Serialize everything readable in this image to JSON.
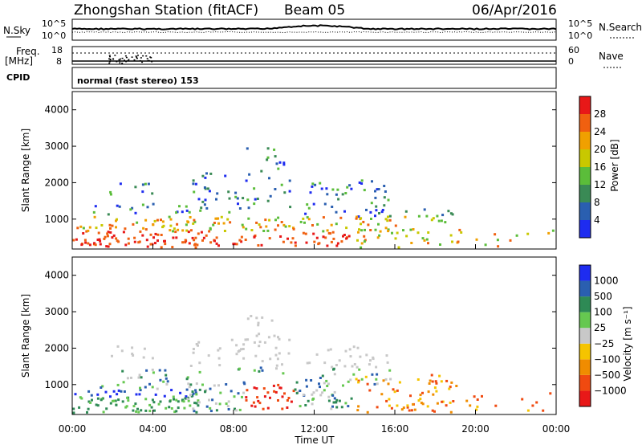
{
  "header": {
    "station_title": "Zhongshan Station (fitACF)",
    "beam": "Beam 05",
    "date": "06/Apr/2016"
  },
  "sky_panel": {
    "left_label": "N.Sky",
    "right_label": "N.Search",
    "left_top_tick": "10^5",
    "left_bottom_tick": "10^0",
    "right_top_tick": "10^5",
    "right_bottom_tick": "10^0"
  },
  "freq_panel": {
    "label_line1": "Freq.",
    "label_line2": "[MHz]",
    "left_top_tick": "18",
    "left_bottom_tick": "8",
    "right_top_tick": "60",
    "right_bottom_tick": "0",
    "right_label": "Nave"
  },
  "cpid": {
    "label": "CPID",
    "text": "normal (fast stereo) 153"
  },
  "colors": {
    "power_scale": [
      "#1e2cf0",
      "#2a5fb0",
      "#3a8a55",
      "#5bbd3a",
      "#c8c800",
      "#f0a000",
      "#f06010",
      "#e81818"
    ],
    "velocity_scale": [
      "#e81818",
      "#f04a10",
      "#f08c00",
      "#f5c400",
      "#c8c8c8",
      "#66c850",
      "#2e8a55",
      "#2a5fb0",
      "#1e2cf0"
    ]
  },
  "chart_data": [
    {
      "type": "heatmap",
      "name": "power",
      "xlabel": "",
      "ylabel": "Slant Range [km]",
      "ylim": [
        180,
        4500
      ],
      "xlim_hours": [
        0,
        24
      ],
      "y_ticks": [
        "1000",
        "2000",
        "3000",
        "4000"
      ],
      "x_ticks": [],
      "colorbar_label": "Power [dB]",
      "colorbar_ticks": [
        "4",
        "8",
        "12",
        "16",
        "20",
        "24",
        "28"
      ]
    },
    {
      "type": "heatmap",
      "name": "velocity",
      "xlabel": "Time UT",
      "ylabel": "Slant Range [km]",
      "ylim": [
        180,
        4500
      ],
      "xlim_hours": [
        0,
        24
      ],
      "y_ticks": [
        "1000",
        "2000",
        "3000",
        "4000"
      ],
      "x_ticks": [
        "00:00",
        "04:00",
        "08:00",
        "12:00",
        "16:00",
        "20:00",
        "00:00"
      ],
      "colorbar_label": "Velocity [m s⁻¹]",
      "colorbar_ticks": [
        "1000",
        "500",
        "100",
        "25",
        "−25",
        "−100",
        "−500",
        "−1000"
      ]
    }
  ]
}
